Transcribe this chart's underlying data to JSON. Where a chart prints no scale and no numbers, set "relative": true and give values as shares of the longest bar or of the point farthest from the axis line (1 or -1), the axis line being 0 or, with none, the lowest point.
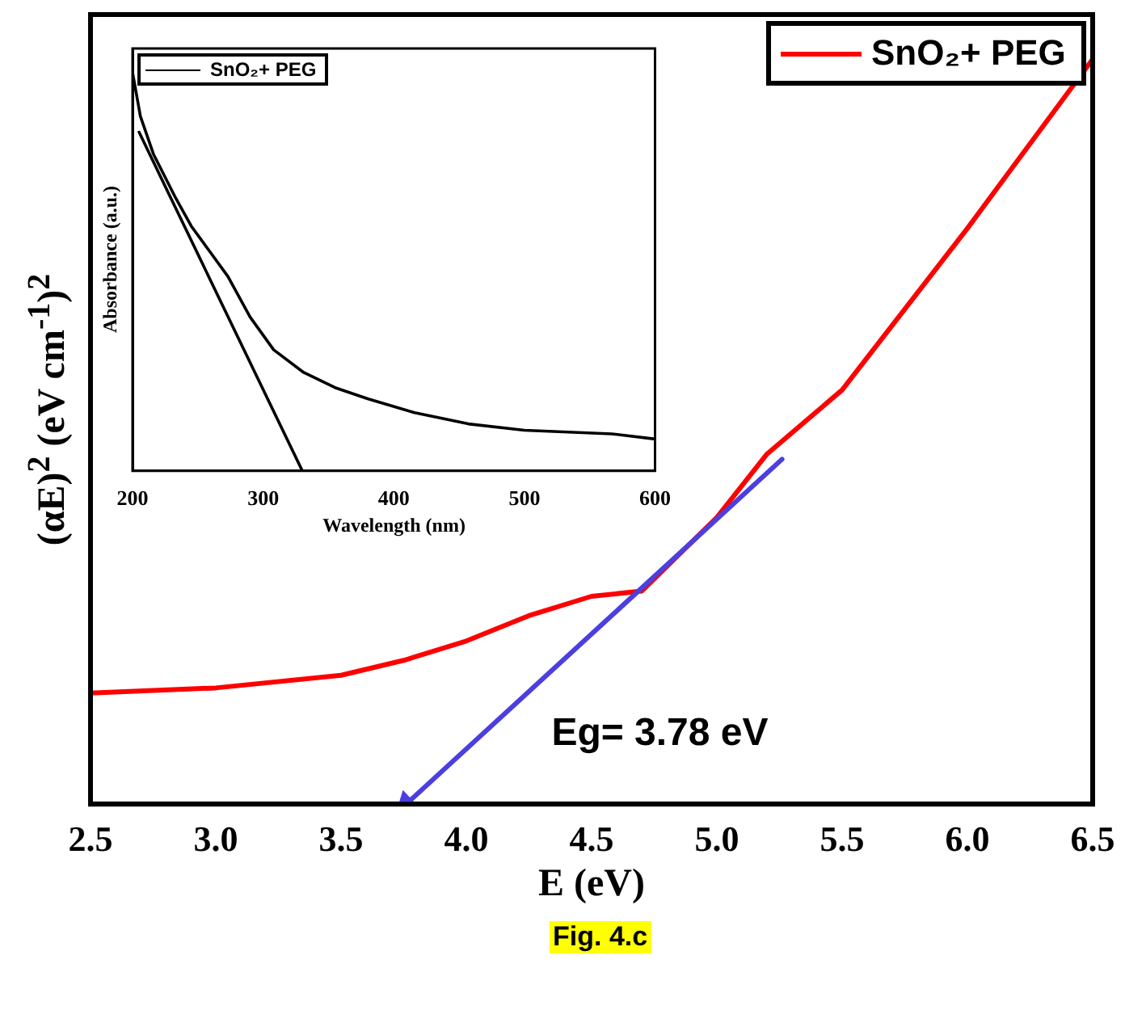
{
  "chart_data": [
    {
      "type": "line",
      "xlabel": "E (eV)",
      "ylabel": "(αE)$^{2}$ (eV cm$^{-1}$)$^{2}$",
      "relative": true,
      "legend": "top right",
      "xlim": [
        2.5,
        6.5
      ],
      "xticks": [
        2.5,
        {
          "value": 3,
          "label": "3.0"
        },
        3.5,
        {
          "value": 4,
          "label": "4.0"
        },
        4.5,
        {
          "value": 5,
          "label": "5.0"
        },
        5.5,
        {
          "value": 6,
          "label": "6.0"
        },
        6.5
      ],
      "series": [
        {
          "name": "SnO₂+ PEG",
          "color": "#ff0000",
          "x": [
            2.5,
            3.0,
            3.5,
            3.75,
            4.0,
            4.25,
            4.5,
            4.7,
            5.0,
            5.2,
            5.5,
            6.0,
            6.5
          ],
          "values": [
            0.149,
            0.156,
            0.173,
            0.193,
            0.219,
            0.253,
            0.279,
            0.286,
            0.385,
            0.47,
            0.556,
            0.773,
            1
          ]
        },
        {
          "color": "#4b3fe0",
          "x": [
            3.76,
            5.26
          ],
          "values": [
            0,
            0.463
          ]
        }
      ],
      "annotations": [
        "Eg= 3.78 eV",
        "Fig. 4.c"
      ]
    },
    {
      "type": "line",
      "xlabel": "Wavelength (nm)",
      "ylabel": "Absorbance (a.u.)",
      "relative": true,
      "legend": "top left",
      "xlim": [
        200,
        600
      ],
      "xticks": [
        200,
        300,
        400,
        500,
        600
      ],
      "series": [
        {
          "name": "SnO₂+ PEG",
          "color": "#000000",
          "x": [
            200,
            206,
            216,
            233,
            245,
            259,
            273,
            290,
            308,
            331,
            355,
            380,
            416,
            457,
            500,
            567,
            600
          ],
          "values": [
            1,
            0.89,
            0.795,
            0.685,
            0.614,
            0.551,
            0.488,
            0.386,
            0.304,
            0.247,
            0.209,
            0.181,
            0.146,
            0.118,
            0.102,
            0.093,
            0.08
          ]
        },
        {
          "color": "#000000",
          "x": [
            205,
            330
          ],
          "values": [
            0.85,
            0
          ]
        }
      ]
    }
  ]
}
